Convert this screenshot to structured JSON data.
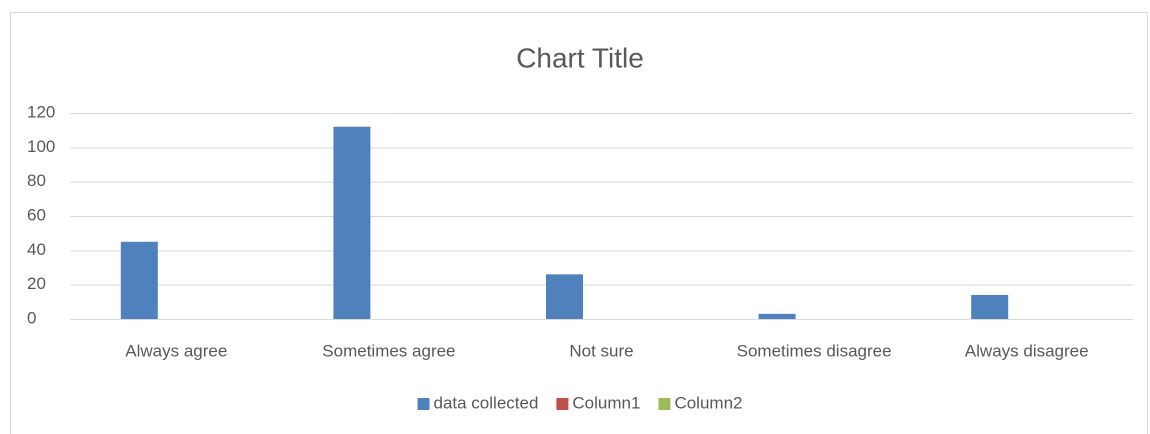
{
  "chart_data": {
    "type": "bar",
    "title": "Chart Title",
    "categories": [
      "Always agree",
      "Sometimes agree",
      "Not sure",
      "Sometimes disagree",
      "Always disagree"
    ],
    "series": [
      {
        "name": "data collected",
        "color": "#4f81bd",
        "values": [
          45,
          112,
          26,
          3,
          14
        ]
      },
      {
        "name": "Column1",
        "color": "#c0504d",
        "values": [
          null,
          null,
          null,
          null,
          null
        ]
      },
      {
        "name": "Column2",
        "color": "#9bbb59",
        "values": [
          null,
          null,
          null,
          null,
          null
        ]
      }
    ],
    "ylim": [
      0,
      120
    ],
    "yticks": [
      0,
      20,
      40,
      60,
      80,
      100,
      120
    ],
    "grid": true,
    "legend": "bottom"
  }
}
